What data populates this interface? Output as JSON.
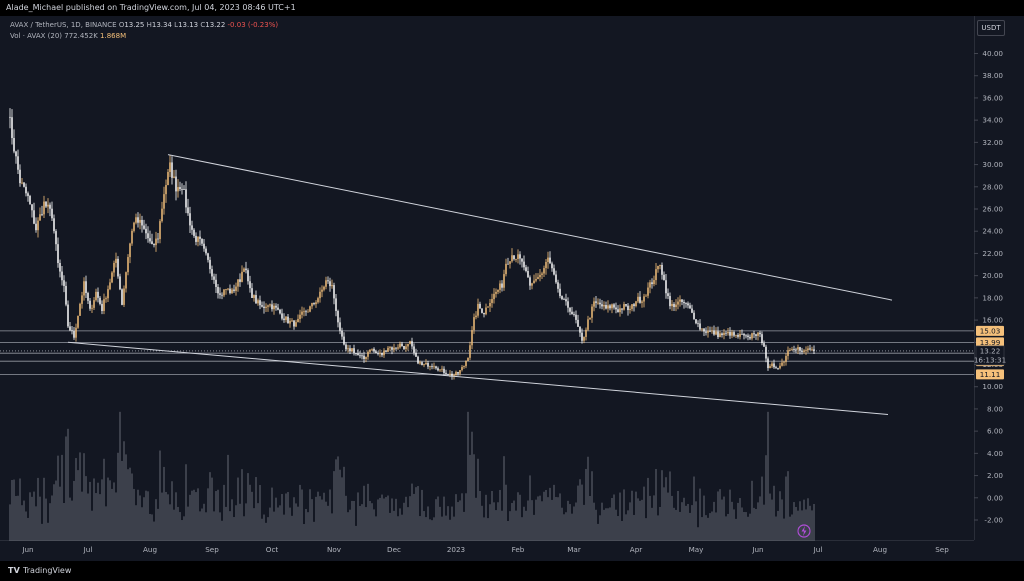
{
  "header": {
    "published": "Alade_Michael published on TradingView.com, Jul 04, 2023 08:46 UTC+1"
  },
  "legend": {
    "symbol": "AVAX / TetherUS, 1D, BINANCE",
    "o_label": "O",
    "o": "13.25",
    "h_label": "H",
    "h": "13.34",
    "l_label": "L",
    "l": "13.13",
    "c_label": "C",
    "c": "13.22",
    "change": "-0.03 (-0.23%)",
    "vol_label": "Vol · AVAX (20)",
    "vol_ma": "772.452K",
    "vol_value": "1.868M"
  },
  "currency_button": "USDT",
  "footer": {
    "brand": "TradingView"
  },
  "colors": {
    "background": "#131722",
    "up": "#f5c07a",
    "down": "#ffffff",
    "trendline": "#d1d4dc",
    "hline": "#9598a1",
    "tag": "#f5c07a"
  },
  "icons": {
    "footer": "tradingview-logo-icon",
    "alert": "lightning-icon"
  },
  "chart_data": {
    "type": "candlestick",
    "y_axis": {
      "range": [
        -3.0,
        42.0
      ],
      "ticks": [
        "40.00",
        "38.00",
        "36.00",
        "34.00",
        "32.00",
        "30.00",
        "28.00",
        "26.00",
        "24.00",
        "22.00",
        "20.00",
        "18.00",
        "16.00",
        "14.00",
        "12.00",
        "10.00",
        "8.00",
        "6.00",
        "4.00",
        "2.00",
        "0.00",
        "-2.00"
      ]
    },
    "x_axis": {
      "labels": [
        {
          "text": "Jun",
          "day": 10
        },
        {
          "text": "Jul",
          "day": 40
        },
        {
          "text": "Aug",
          "day": 71
        },
        {
          "text": "Sep",
          "day": 102
        },
        {
          "text": "Oct",
          "day": 132
        },
        {
          "text": "Nov",
          "day": 163
        },
        {
          "text": "Dec",
          "day": 193
        },
        {
          "text": "2023",
          "day": 224
        },
        {
          "text": "Feb",
          "day": 255
        },
        {
          "text": "Mar",
          "day": 283
        },
        {
          "text": "Apr",
          "day": 314
        },
        {
          "text": "May",
          "day": 344
        },
        {
          "text": "Jun",
          "day": 375
        },
        {
          "text": "Jul",
          "day": 405
        },
        {
          "text": "Aug",
          "day": 436
        },
        {
          "text": "Sep",
          "day": 467
        }
      ],
      "day_range": [
        -2,
        500
      ]
    },
    "anchors": [
      [
        0,
        34.9
      ],
      [
        3,
        31.5
      ],
      [
        6,
        28.5
      ],
      [
        10,
        27.0
      ],
      [
        14,
        24.2
      ],
      [
        18,
        26.5
      ],
      [
        22,
        25.5
      ],
      [
        25,
        21.0
      ],
      [
        28,
        18.8
      ],
      [
        30,
        15.5
      ],
      [
        33,
        14.5
      ],
      [
        36,
        17.5
      ],
      [
        38,
        19.2
      ],
      [
        41,
        16.8
      ],
      [
        44,
        18.5
      ],
      [
        47,
        17.0
      ],
      [
        51,
        19.5
      ],
      [
        54,
        21.5
      ],
      [
        57,
        17.5
      ],
      [
        60,
        21.8
      ],
      [
        63,
        25.0
      ],
      [
        66,
        24.7
      ],
      [
        69,
        23.8
      ],
      [
        72,
        22.5
      ],
      [
        75,
        23.5
      ],
      [
        78,
        27.5
      ],
      [
        81,
        29.8
      ],
      [
        84,
        28.0
      ],
      [
        87,
        28.2
      ],
      [
        90,
        25.5
      ],
      [
        93,
        23.5
      ],
      [
        96,
        23.0
      ],
      [
        99,
        21.7
      ],
      [
        103,
        19.8
      ],
      [
        106,
        18.2
      ],
      [
        109,
        18.8
      ],
      [
        112,
        18.5
      ],
      [
        116,
        19.7
      ],
      [
        118,
        21.0
      ],
      [
        121,
        18.6
      ],
      [
        124,
        17.7
      ],
      [
        127,
        17.1
      ],
      [
        130,
        17.5
      ],
      [
        134,
        17.0
      ],
      [
        137,
        16.4
      ],
      [
        140,
        15.9
      ],
      [
        144,
        15.6
      ],
      [
        147,
        16.5
      ],
      [
        150,
        16.9
      ],
      [
        153,
        17.5
      ],
      [
        156,
        18.3
      ],
      [
        159,
        19.5
      ],
      [
        162,
        19.0
      ],
      [
        164,
        17.0
      ],
      [
        166,
        14.8
      ],
      [
        169,
        13.2
      ],
      [
        172,
        13.4
      ],
      [
        175,
        12.8
      ],
      [
        178,
        12.5
      ],
      [
        181,
        13.5
      ],
      [
        184,
        13.0
      ],
      [
        187,
        12.9
      ],
      [
        190,
        13.6
      ],
      [
        193,
        13.4
      ],
      [
        196,
        13.8
      ],
      [
        199,
        13.5
      ],
      [
        201,
        13.9
      ],
      [
        204,
        12.5
      ],
      [
        207,
        11.9
      ],
      [
        210,
        12.0
      ],
      [
        213,
        12.0
      ],
      [
        216,
        11.5
      ],
      [
        219,
        11.3
      ],
      [
        222,
        11.0
      ],
      [
        225,
        11.2
      ],
      [
        228,
        11.9
      ],
      [
        230,
        12.8
      ],
      [
        233,
        16.0
      ],
      [
        235,
        17.2
      ],
      [
        238,
        16.7
      ],
      [
        241,
        17.8
      ],
      [
        244,
        18.5
      ],
      [
        247,
        19.2
      ],
      [
        249,
        21.2
      ],
      [
        252,
        21.9
      ],
      [
        255,
        21.6
      ],
      [
        258,
        20.8
      ],
      [
        261,
        18.9
      ],
      [
        264,
        19.8
      ],
      [
        267,
        20.2
      ],
      [
        270,
        21.5
      ],
      [
        272,
        20.5
      ],
      [
        275,
        18.5
      ],
      [
        278,
        17.6
      ],
      [
        281,
        17.0
      ],
      [
        284,
        15.9
      ],
      [
        287,
        14.0
      ],
      [
        290,
        15.9
      ],
      [
        293,
        17.5
      ],
      [
        296,
        17.4
      ],
      [
        299,
        17.0
      ],
      [
        302,
        17.3
      ],
      [
        305,
        16.9
      ],
      [
        308,
        17.2
      ],
      [
        311,
        16.9
      ],
      [
        314,
        17.8
      ],
      [
        317,
        17.9
      ],
      [
        320,
        18.8
      ],
      [
        323,
        19.8
      ],
      [
        326,
        21.2
      ],
      [
        328,
        19.5
      ],
      [
        331,
        17.2
      ],
      [
        334,
        17.5
      ],
      [
        337,
        17.6
      ],
      [
        340,
        17.2
      ],
      [
        343,
        16.3
      ],
      [
        346,
        15.3
      ],
      [
        349,
        15.0
      ],
      [
        352,
        14.9
      ],
      [
        355,
        14.7
      ],
      [
        358,
        14.7
      ],
      [
        361,
        14.8
      ],
      [
        364,
        14.5
      ],
      [
        367,
        14.6
      ],
      [
        370,
        14.3
      ],
      [
        373,
        14.9
      ],
      [
        376,
        14.5
      ],
      [
        378,
        13.8
      ],
      [
        380,
        11.5
      ],
      [
        382,
        11.9
      ],
      [
        384,
        11.8
      ],
      [
        386,
        11.9
      ],
      [
        388,
        12.4
      ],
      [
        390,
        13.3
      ],
      [
        392,
        13.6
      ],
      [
        395,
        13.5
      ],
      [
        397,
        13.0
      ],
      [
        399,
        13.3
      ],
      [
        401,
        13.4
      ],
      [
        403,
        13.22
      ]
    ],
    "volume_range": [
      0,
      36000000
    ],
    "horizontal_lines": [
      {
        "price": 15.03,
        "label": "15.03"
      },
      {
        "price": 13.99,
        "label": "13.99"
      },
      {
        "price": 13.02,
        "label": "13.02"
      },
      {
        "price": 12.3,
        "label": "12.30"
      },
      {
        "price": 11.11,
        "label": "11.11"
      }
    ],
    "current_price": {
      "price": 13.22,
      "label": "13.22",
      "countdown": "16:13:31"
    },
    "trendlines": [
      {
        "from": [
          80,
          30.9
        ],
        "to": [
          442,
          17.8
        ]
      },
      {
        "from": [
          30,
          14.0
        ],
        "to": [
          440,
          7.5
        ]
      }
    ]
  }
}
